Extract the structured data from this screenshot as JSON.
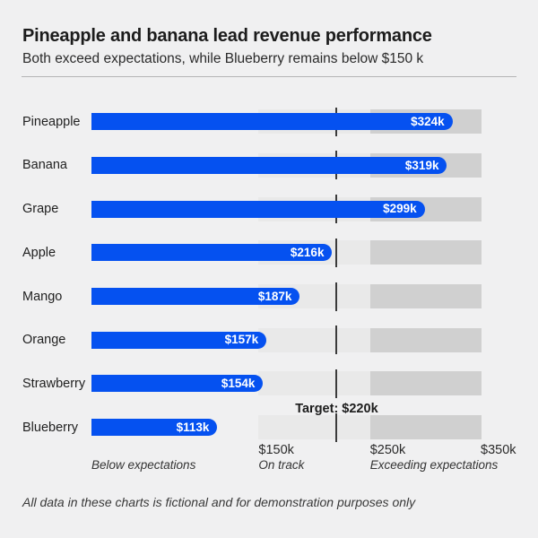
{
  "chart_data": {
    "type": "bar",
    "orientation": "horizontal",
    "title": "Pineapple and banana lead revenue performance",
    "subtitle": "Both exceed expectations, while Blueberry remains below $150 k",
    "categories": [
      "Pineapple",
      "Banana",
      "Grape",
      "Apple",
      "Mango",
      "Orange",
      "Strawberry",
      "Blueberry"
    ],
    "values": [
      324,
      319,
      299,
      216,
      187,
      157,
      154,
      113
    ],
    "value_labels": [
      "$324k",
      "$319k",
      "$299k",
      "$216k",
      "$187k",
      "$157k",
      "$154k",
      "$113k"
    ],
    "unit": "USD thousands",
    "xlim": [
      0,
      350
    ],
    "axis_ticks": [
      {
        "value": 150,
        "label": "$150k"
      },
      {
        "value": 250,
        "label": "$250k"
      },
      {
        "value": 350,
        "label": "$350k"
      }
    ],
    "target": {
      "value": 220,
      "label": "Target: $220k"
    },
    "zones": [
      {
        "label": "Below expectations",
        "start": 0,
        "end": 150
      },
      {
        "label": "On track",
        "start": 150,
        "end": 250
      },
      {
        "label": "Exceeding expectations",
        "start": 250,
        "end": 350
      }
    ],
    "legend": "none",
    "grid": "off",
    "colors": {
      "bar": "#0551f0",
      "zone_mid": "#e9e9e9",
      "zone_high": "#d0d0d0",
      "target_line": "#3b3b3b",
      "background": "#f0f0f1"
    }
  },
  "footer": {
    "note": "All data in these charts is fictional and for demonstration purposes only"
  }
}
